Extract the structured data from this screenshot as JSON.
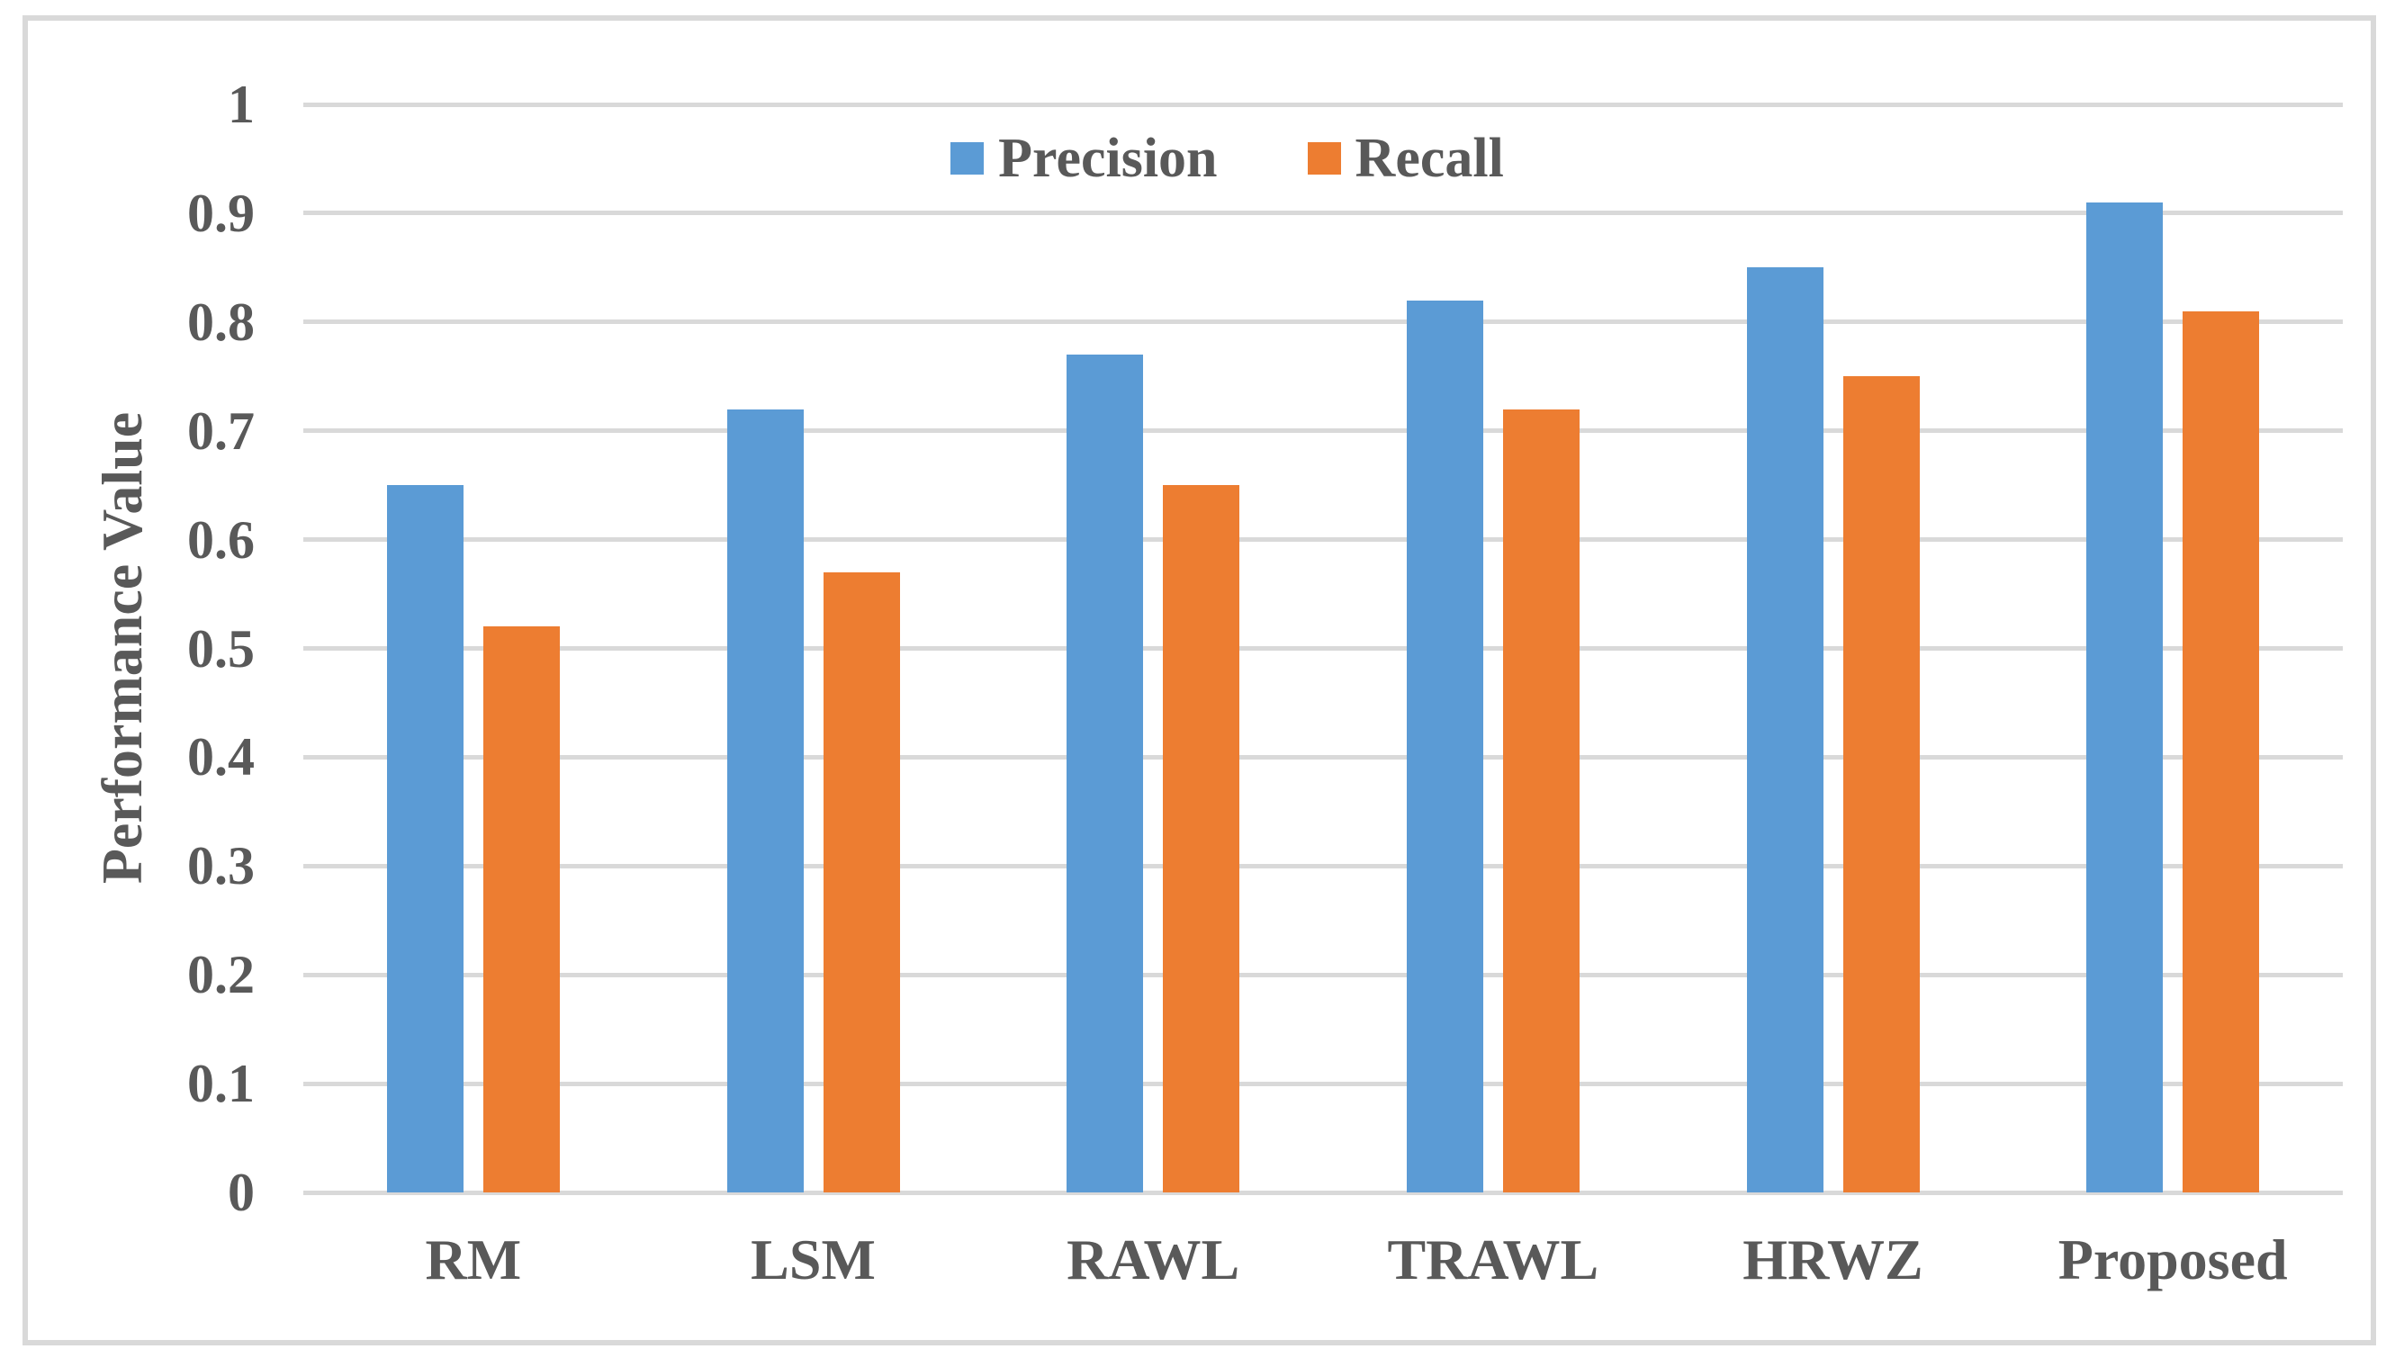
{
  "chart_data": {
    "type": "bar",
    "title": "",
    "xlabel": "",
    "ylabel": "Performance Value",
    "categories": [
      "RM",
      "LSM",
      "RAWL",
      "TRAWL",
      "HRWZ",
      "Proposed"
    ],
    "series": [
      {
        "name": "Precision",
        "color": "#5B9BD5",
        "values": [
          0.65,
          0.72,
          0.77,
          0.82,
          0.85,
          0.91
        ]
      },
      {
        "name": "Recall",
        "color": "#ED7D31",
        "values": [
          0.52,
          0.57,
          0.65,
          0.72,
          0.75,
          0.81
        ]
      }
    ],
    "y_axis": {
      "min": 0,
      "max": 1,
      "step": 0.1,
      "tick_labels": [
        "0",
        "0.1",
        "0.2",
        "0.3",
        "0.4",
        "0.5",
        "0.6",
        "0.7",
        "0.8",
        "0.9",
        "1"
      ]
    },
    "legend_position": "top-center",
    "grid": true,
    "colors": {
      "text": "#595959",
      "gridline": "#D9D9D9",
      "border": "#D9D9D9",
      "background": "#FFFFFF"
    }
  }
}
